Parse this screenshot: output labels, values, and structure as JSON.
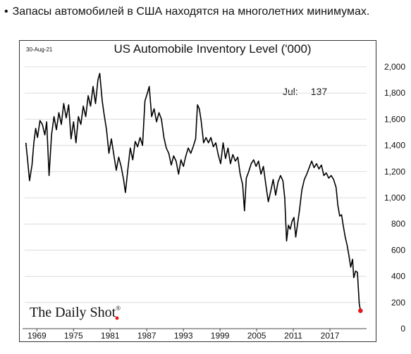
{
  "caption": "Запасы автомобилей в США находятся на многолетних минимумах.",
  "chart_data": {
    "type": "line",
    "title": "US Automobile Inventory Level ('000)",
    "date_stamp": "30-Aug-21",
    "brand": "The Daily Shot",
    "brand_mark": "®",
    "annotation": {
      "label": "Jul:",
      "value": "137"
    },
    "xlim": [
      1967,
      2023
    ],
    "ylim": [
      0,
      2000
    ],
    "x_ticks": [
      1969,
      1975,
      1981,
      1987,
      1993,
      1999,
      2005,
      2011,
      2017
    ],
    "y_ticks": [
      {
        "v": 0,
        "label": "0"
      },
      {
        "v": 200,
        "label": "200"
      },
      {
        "v": 400,
        "label": "400"
      },
      {
        "v": 600,
        "label": "600"
      },
      {
        "v": 800,
        "label": "800"
      },
      {
        "v": 1000,
        "label": "1,000"
      },
      {
        "v": 1200,
        "label": "1,200"
      },
      {
        "v": 1400,
        "label": "1,400"
      },
      {
        "v": 1600,
        "label": "1,600"
      },
      {
        "v": 1800,
        "label": "1,800"
      },
      {
        "v": 2000,
        "label": "2,000"
      }
    ],
    "series": [
      {
        "color": "#000000",
        "points": [
          [
            1967.2,
            1420
          ],
          [
            1967.5,
            1280
          ],
          [
            1967.8,
            1130
          ],
          [
            1968.2,
            1250
          ],
          [
            1968.5,
            1420
          ],
          [
            1968.8,
            1530
          ],
          [
            1969.1,
            1460
          ],
          [
            1969.5,
            1590
          ],
          [
            1969.9,
            1560
          ],
          [
            1970.3,
            1480
          ],
          [
            1970.6,
            1580
          ],
          [
            1971.0,
            1170
          ],
          [
            1971.4,
            1480
          ],
          [
            1971.8,
            1620
          ],
          [
            1972.2,
            1520
          ],
          [
            1972.6,
            1650
          ],
          [
            1973.0,
            1560
          ],
          [
            1973.4,
            1720
          ],
          [
            1973.8,
            1610
          ],
          [
            1974.2,
            1710
          ],
          [
            1974.6,
            1450
          ],
          [
            1975.0,
            1580
          ],
          [
            1975.4,
            1420
          ],
          [
            1975.8,
            1620
          ],
          [
            1976.2,
            1560
          ],
          [
            1976.6,
            1700
          ],
          [
            1977.0,
            1620
          ],
          [
            1977.4,
            1780
          ],
          [
            1977.8,
            1700
          ],
          [
            1978.2,
            1850
          ],
          [
            1978.6,
            1720
          ],
          [
            1979.0,
            1900
          ],
          [
            1979.3,
            1950
          ],
          [
            1979.7,
            1740
          ],
          [
            1980.0,
            1640
          ],
          [
            1980.4,
            1520
          ],
          [
            1980.8,
            1340
          ],
          [
            1981.2,
            1450
          ],
          [
            1981.6,
            1330
          ],
          [
            1982.0,
            1210
          ],
          [
            1982.4,
            1310
          ],
          [
            1982.8,
            1240
          ],
          [
            1983.2,
            1140
          ],
          [
            1983.5,
            1040
          ],
          [
            1983.9,
            1220
          ],
          [
            1984.3,
            1380
          ],
          [
            1984.7,
            1290
          ],
          [
            1985.1,
            1430
          ],
          [
            1985.5,
            1390
          ],
          [
            1985.9,
            1460
          ],
          [
            1986.3,
            1400
          ],
          [
            1986.7,
            1740
          ],
          [
            1987.1,
            1800
          ],
          [
            1987.4,
            1850
          ],
          [
            1987.8,
            1620
          ],
          [
            1988.2,
            1680
          ],
          [
            1988.6,
            1580
          ],
          [
            1989.0,
            1650
          ],
          [
            1989.4,
            1600
          ],
          [
            1989.8,
            1460
          ],
          [
            1990.2,
            1380
          ],
          [
            1990.6,
            1340
          ],
          [
            1991.0,
            1250
          ],
          [
            1991.4,
            1320
          ],
          [
            1991.8,
            1280
          ],
          [
            1992.2,
            1180
          ],
          [
            1992.6,
            1290
          ],
          [
            1993.0,
            1240
          ],
          [
            1993.4,
            1320
          ],
          [
            1993.8,
            1380
          ],
          [
            1994.2,
            1340
          ],
          [
            1994.6,
            1390
          ],
          [
            1995.0,
            1450
          ],
          [
            1995.3,
            1710
          ],
          [
            1995.6,
            1680
          ],
          [
            1995.9,
            1590
          ],
          [
            1996.3,
            1420
          ],
          [
            1996.7,
            1460
          ],
          [
            1997.1,
            1420
          ],
          [
            1997.5,
            1460
          ],
          [
            1997.9,
            1390
          ],
          [
            1998.3,
            1420
          ],
          [
            1998.7,
            1330
          ],
          [
            1999.1,
            1260
          ],
          [
            1999.5,
            1420
          ],
          [
            1999.9,
            1300
          ],
          [
            2000.3,
            1380
          ],
          [
            2000.7,
            1260
          ],
          [
            2001.1,
            1330
          ],
          [
            2001.5,
            1280
          ],
          [
            2001.9,
            1310
          ],
          [
            2002.3,
            1180
          ],
          [
            2002.7,
            1100
          ],
          [
            2003.0,
            900
          ],
          [
            2003.3,
            1150
          ],
          [
            2003.7,
            1200
          ],
          [
            2004.1,
            1260
          ],
          [
            2004.5,
            1290
          ],
          [
            2004.9,
            1240
          ],
          [
            2005.3,
            1280
          ],
          [
            2005.7,
            1180
          ],
          [
            2006.1,
            1240
          ],
          [
            2006.5,
            1100
          ],
          [
            2006.9,
            970
          ],
          [
            2007.3,
            1050
          ],
          [
            2007.7,
            1140
          ],
          [
            2008.1,
            1020
          ],
          [
            2008.5,
            1120
          ],
          [
            2008.9,
            1170
          ],
          [
            2009.3,
            1130
          ],
          [
            2009.6,
            1000
          ],
          [
            2009.9,
            670
          ],
          [
            2010.2,
            790
          ],
          [
            2010.5,
            760
          ],
          [
            2010.8,
            820
          ],
          [
            2011.1,
            850
          ],
          [
            2011.4,
            700
          ],
          [
            2011.7,
            800
          ],
          [
            2012.0,
            900
          ],
          [
            2012.4,
            1060
          ],
          [
            2012.8,
            1140
          ],
          [
            2013.2,
            1180
          ],
          [
            2013.6,
            1230
          ],
          [
            2014.0,
            1280
          ],
          [
            2014.4,
            1230
          ],
          [
            2014.8,
            1260
          ],
          [
            2015.2,
            1220
          ],
          [
            2015.6,
            1250
          ],
          [
            2016.0,
            1170
          ],
          [
            2016.4,
            1190
          ],
          [
            2016.8,
            1150
          ],
          [
            2017.2,
            1170
          ],
          [
            2017.6,
            1140
          ],
          [
            2018.0,
            1080
          ],
          [
            2018.3,
            940
          ],
          [
            2018.6,
            860
          ],
          [
            2018.9,
            870
          ],
          [
            2019.2,
            780
          ],
          [
            2019.5,
            700
          ],
          [
            2019.8,
            640
          ],
          [
            2020.1,
            560
          ],
          [
            2020.4,
            470
          ],
          [
            2020.7,
            530
          ],
          [
            2020.9,
            390
          ],
          [
            2021.2,
            440
          ],
          [
            2021.5,
            430
          ],
          [
            2021.8,
            190
          ],
          [
            2022.0,
            137
          ]
        ]
      }
    ]
  }
}
